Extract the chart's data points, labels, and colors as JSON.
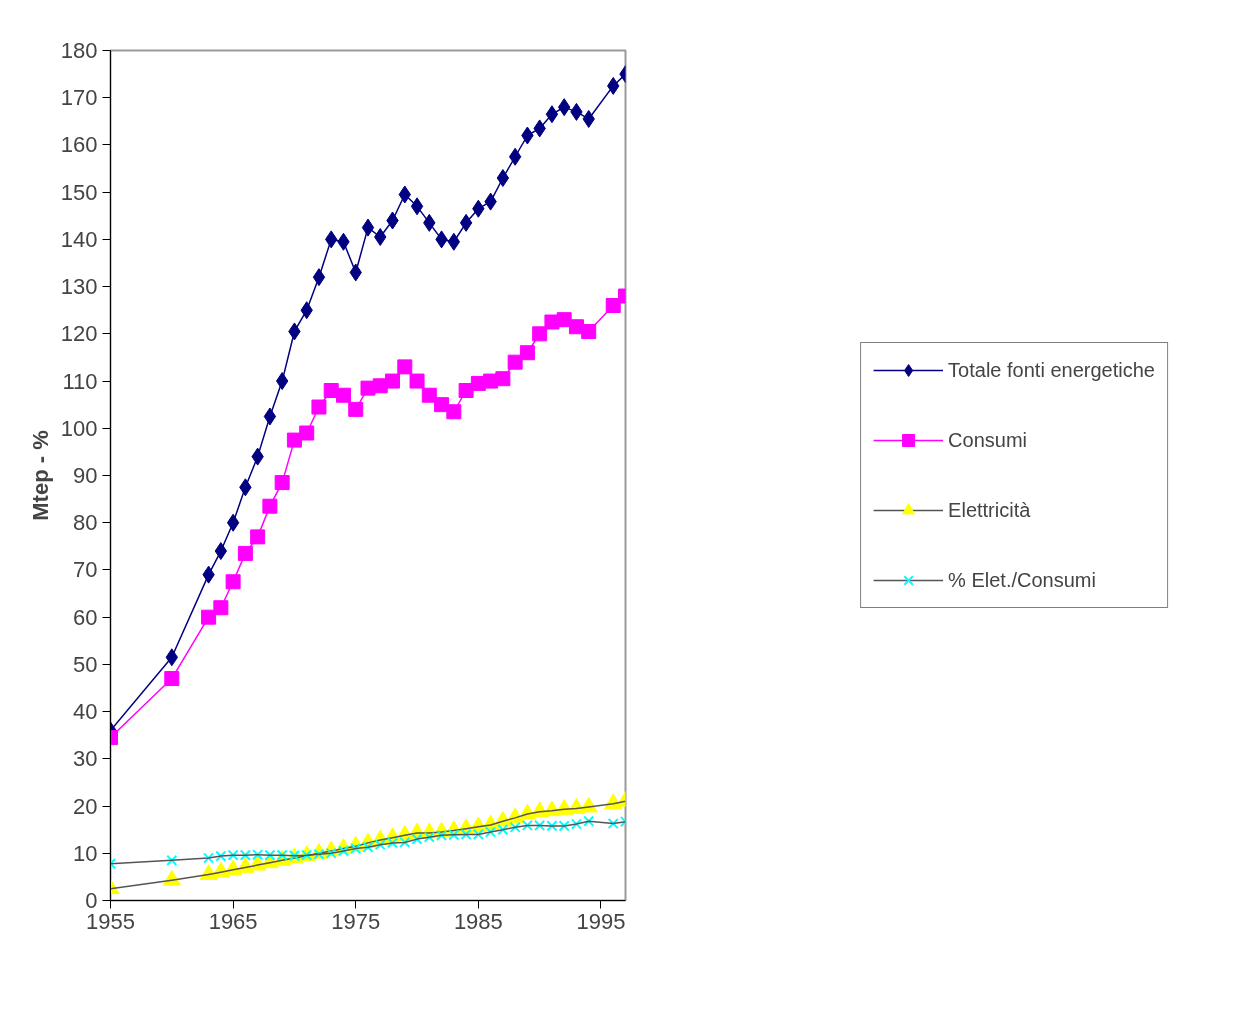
{
  "chart_data": {
    "type": "line",
    "ylabel": "Mtep - %",
    "x": [
      1955,
      1960,
      1963,
      1964,
      1965,
      1966,
      1967,
      1968,
      1969,
      1970,
      1971,
      1972,
      1973,
      1974,
      1975,
      1976,
      1977,
      1978,
      1979,
      1980,
      1981,
      1982,
      1983,
      1984,
      1985,
      1986,
      1987,
      1988,
      1989,
      1990,
      1991,
      1992,
      1993,
      1994,
      1996,
      1997
    ],
    "series": [
      {
        "name": "Totale fonti energetiche",
        "color": "#000080",
        "marker": "diamond",
        "values": [
          36,
          51.5,
          69,
          74,
          80,
          87.5,
          94,
          102.5,
          110,
          120.5,
          125,
          132,
          140,
          139.5,
          133,
          142.5,
          140.5,
          144,
          149.5,
          147,
          143.5,
          140,
          139.5,
          143.5,
          146.5,
          148,
          153,
          157.5,
          162,
          163.5,
          166.5,
          168,
          167,
          165.5,
          172.5,
          175
        ]
      },
      {
        "name": "Consumi",
        "color": "#ff00ff",
        "marker": "square",
        "values": [
          34.5,
          47,
          60,
          62,
          67.5,
          73.5,
          77,
          83.5,
          88.5,
          97.5,
          99,
          104.5,
          108,
          107,
          104,
          108.5,
          109,
          110,
          113,
          110,
          107,
          105,
          103.5,
          108,
          109.5,
          110,
          110.5,
          114,
          116,
          120,
          122.5,
          123,
          121.5,
          120.5,
          126,
          128
        ]
      },
      {
        "name": "Elettricità",
        "color": "#ffff00",
        "marker": "triangle",
        "values": [
          2.5,
          4.3,
          5.5,
          6,
          6.5,
          7,
          7.5,
          8,
          8.5,
          9,
          9.5,
          10,
          10.5,
          11,
          11.5,
          12.2,
          12.8,
          13.3,
          13.8,
          14.3,
          14.3,
          14.5,
          14.8,
          15.2,
          15.6,
          16,
          16.8,
          17.5,
          18.3,
          18.8,
          19,
          19.3,
          19.5,
          19.8,
          20.5,
          21
        ]
      },
      {
        "name": "% Elet./Consumi",
        "color": "#00ffff",
        "marker": "cross",
        "values": [
          7.8,
          8.5,
          9,
          9.4,
          9.6,
          9.6,
          9.7,
          9.6,
          9.6,
          9.5,
          9.6,
          9.8,
          10,
          10.5,
          11,
          11.3,
          11.8,
          12.2,
          12.3,
          13,
          13.4,
          13.8,
          13.9,
          14,
          14,
          14.5,
          15,
          15.5,
          15.9,
          15.9,
          15.8,
          15.8,
          16.2,
          16.8,
          16.3,
          16.7
        ]
      }
    ],
    "xlim": [
      1955,
      1997
    ],
    "xticks": [
      1955,
      1965,
      1975,
      1985,
      1995
    ],
    "ylim": [
      0,
      180
    ],
    "yticks": [
      0,
      10,
      20,
      30,
      40,
      50,
      60,
      70,
      80,
      90,
      100,
      110,
      120,
      130,
      140,
      150,
      160,
      170,
      180
    ],
    "grid": false,
    "legend": "right"
  }
}
